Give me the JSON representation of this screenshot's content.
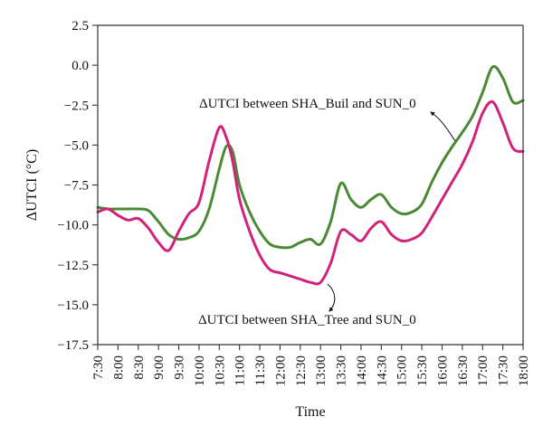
{
  "chart_data": {
    "type": "line",
    "xlabel": "Time",
    "ylabel": "ΔUTCI (°C)",
    "ylim": [
      -17.5,
      2.5
    ],
    "yticks": [
      2.5,
      0.0,
      -2.5,
      -5.0,
      -7.5,
      -10.0,
      -12.5,
      -15.0,
      -17.5
    ],
    "ytick_labels": [
      "2.5",
      "0.0",
      "−2.5",
      "−5.0",
      "−7.5",
      "−10.0",
      "−12.5",
      "−15.0",
      "−17.5"
    ],
    "xlim": [
      7.5,
      18.0
    ],
    "xticks": [
      "7:30",
      "8:00",
      "8:30",
      "9:00",
      "9:30",
      "10:00",
      "10:30",
      "11:00",
      "11:30",
      "12:00",
      "12:30",
      "13:00",
      "13:30",
      "14:00",
      "14:30",
      "15:00",
      "15:30",
      "16:00",
      "16:30",
      "17:00",
      "17:30",
      "18:00"
    ],
    "grid": false,
    "series": [
      {
        "color": "#4a8a35",
        "x": [
          7.5,
          7.75,
          8.0,
          8.25,
          8.5,
          8.75,
          9.0,
          9.25,
          9.5,
          9.75,
          10.0,
          10.25,
          10.5,
          10.67,
          10.83,
          11.0,
          11.25,
          11.5,
          11.75,
          12.0,
          12.25,
          12.5,
          12.75,
          13.0,
          13.25,
          13.5,
          13.75,
          14.0,
          14.25,
          14.5,
          14.75,
          15.0,
          15.25,
          15.5,
          15.75,
          16.0,
          16.25,
          16.5,
          16.75,
          17.0,
          17.25,
          17.5,
          17.75,
          18.0
        ],
        "y": [
          -8.9,
          -9.0,
          -9.0,
          -9.0,
          -9.0,
          -9.1,
          -9.8,
          -10.6,
          -10.9,
          -10.8,
          -10.4,
          -9.0,
          -6.5,
          -5.1,
          -5.4,
          -7.5,
          -9.2,
          -10.4,
          -11.2,
          -11.4,
          -11.4,
          -11.1,
          -10.9,
          -11.2,
          -9.8,
          -7.4,
          -8.4,
          -8.9,
          -8.4,
          -8.1,
          -8.9,
          -9.3,
          -9.2,
          -8.7,
          -7.3,
          -6.1,
          -5.1,
          -4.2,
          -3.2,
          -1.7,
          -0.1,
          -0.8,
          -2.3,
          -2.2
        ]
      },
      {
        "color": "#d1237c",
        "x": [
          7.5,
          7.75,
          8.0,
          8.25,
          8.5,
          8.75,
          9.0,
          9.25,
          9.5,
          9.75,
          10.0,
          10.25,
          10.5,
          10.67,
          10.83,
          11.0,
          11.25,
          11.5,
          11.75,
          12.0,
          12.25,
          12.5,
          12.75,
          13.0,
          13.25,
          13.5,
          13.75,
          14.0,
          14.25,
          14.5,
          14.75,
          15.0,
          15.25,
          15.5,
          15.75,
          16.0,
          16.25,
          16.5,
          16.75,
          17.0,
          17.25,
          17.5,
          17.75,
          18.0
        ],
        "y": [
          -9.2,
          -9.0,
          -9.4,
          -9.7,
          -9.6,
          -10.2,
          -11.1,
          -11.6,
          -10.4,
          -9.3,
          -8.6,
          -6.0,
          -3.9,
          -4.5,
          -6.0,
          -8.4,
          -10.4,
          -11.9,
          -12.8,
          -13.0,
          -13.2,
          -13.4,
          -13.6,
          -13.6,
          -12.4,
          -10.4,
          -10.6,
          -11.0,
          -10.2,
          -9.8,
          -10.6,
          -11.0,
          -10.9,
          -10.5,
          -9.5,
          -8.4,
          -7.3,
          -6.2,
          -4.8,
          -3.0,
          -2.3,
          -3.6,
          -5.2,
          -5.4
        ]
      }
    ],
    "annotations": [
      {
        "text": "ΔUTCI between SHA_Buil and SUN_0"
      },
      {
        "text": "ΔUTCI between SHA_Tree and SUN_0"
      }
    ]
  }
}
